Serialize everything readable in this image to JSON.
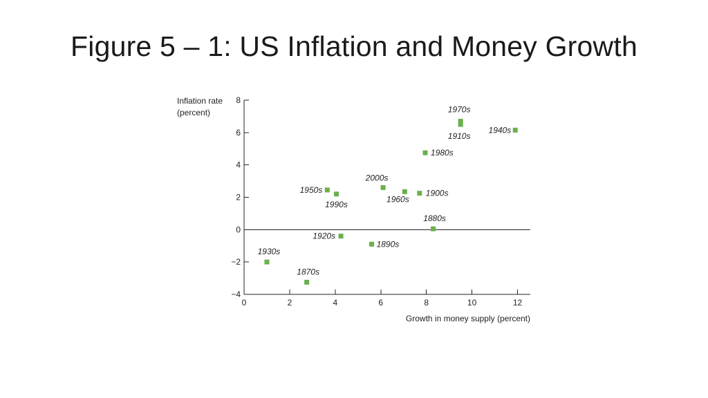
{
  "slide": {
    "title": "Figure 5 – 1: US Inflation and Money Growth"
  },
  "chart_data": {
    "type": "scatter",
    "xlabel": "Growth in money supply (percent)",
    "ylabel": [
      "Inflation rate",
      "(percent)"
    ],
    "xlim": [
      0,
      12.5
    ],
    "ylim": [
      -4,
      8
    ],
    "xticks": [
      0,
      2,
      4,
      6,
      8,
      10,
      12
    ],
    "yticks": [
      -4,
      -2,
      0,
      2,
      4,
      6,
      8
    ],
    "marker_color": "#6ab04c",
    "points": [
      {
        "label": "1870s",
        "x": 2.75,
        "y": -3.25
      },
      {
        "label": "1880s",
        "x": 8.3,
        "y": 0.05
      },
      {
        "label": "1890s",
        "x": 5.6,
        "y": -0.9
      },
      {
        "label": "1900s",
        "x": 7.7,
        "y": 2.25
      },
      {
        "label": "1910s",
        "x": 9.5,
        "y": 6.5
      },
      {
        "label": "1920s",
        "x": 4.25,
        "y": -0.4
      },
      {
        "label": "1930s",
        "x": 1.0,
        "y": -2.0
      },
      {
        "label": "1940s",
        "x": 11.9,
        "y": 6.15
      },
      {
        "label": "1950s",
        "x": 3.65,
        "y": 2.45
      },
      {
        "label": "1960s",
        "x": 7.05,
        "y": 2.35
      },
      {
        "label": "1970s",
        "x": 9.5,
        "y": 6.7
      },
      {
        "label": "1980s",
        "x": 7.95,
        "y": 4.75
      },
      {
        "label": "1990s",
        "x": 4.05,
        "y": 2.2
      },
      {
        "label": "2000s",
        "x": 6.1,
        "y": 2.6
      }
    ]
  }
}
